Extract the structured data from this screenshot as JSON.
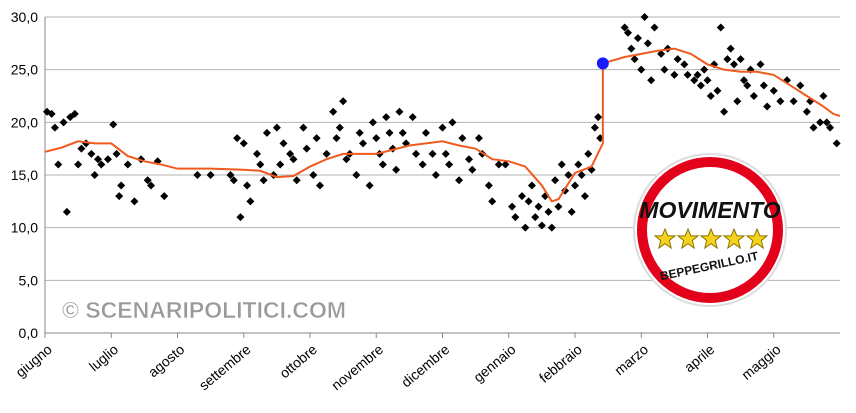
{
  "chart_data": {
    "type": "scatter",
    "xlim": [
      0,
      12
    ],
    "ylim": [
      0,
      30
    ],
    "grid": true,
    "yticks": [
      {
        "value": 0,
        "label": "0,0"
      },
      {
        "value": 5,
        "label": "5,0"
      },
      {
        "value": 10,
        "label": "10,0"
      },
      {
        "value": 15,
        "label": "15,0"
      },
      {
        "value": 20,
        "label": "20,0"
      },
      {
        "value": 25,
        "label": "25,0"
      },
      {
        "value": 30,
        "label": "30,0"
      }
    ],
    "xticks": [
      {
        "value": 0,
        "label": "giugno"
      },
      {
        "value": 1,
        "label": "luglio"
      },
      {
        "value": 2,
        "label": "agosto"
      },
      {
        "value": 3,
        "label": "settembre"
      },
      {
        "value": 4,
        "label": "ottobre"
      },
      {
        "value": 5,
        "label": "novembre"
      },
      {
        "value": 6,
        "label": "dicembre"
      },
      {
        "value": 7,
        "label": "gennaio"
      },
      {
        "value": 8,
        "label": "febbraio"
      },
      {
        "value": 9,
        "label": "marzo"
      },
      {
        "value": 10,
        "label": "aprile"
      },
      {
        "value": 11,
        "label": "maggio"
      }
    ],
    "watermark": "© SCENARIPOLITICI.COM",
    "logo": {
      "title": "MOVIMENTO",
      "site": "BEPPEGRILLO.IT"
    },
    "series": [
      {
        "type": "scatter",
        "color": "#000000",
        "x": [
          0.03,
          0.1,
          0.15,
          0.2,
          0.28,
          0.33,
          0.38,
          0.45,
          0.5,
          0.55,
          0.62,
          0.7,
          0.75,
          0.8,
          0.85,
          0.95,
          1.03,
          1.08,
          1.12,
          1.15,
          1.25,
          1.35,
          1.45,
          1.55,
          1.6,
          1.7,
          1.8,
          2.3,
          2.5,
          2.8,
          2.85,
          2.9,
          2.95,
          3.0,
          3.05,
          3.1,
          3.2,
          3.25,
          3.3,
          3.35,
          3.45,
          3.5,
          3.55,
          3.6,
          3.7,
          3.75,
          3.8,
          3.9,
          3.95,
          4.05,
          4.1,
          4.15,
          4.25,
          4.35,
          4.4,
          4.45,
          4.5,
          4.55,
          4.6,
          4.7,
          4.75,
          4.8,
          4.9,
          4.95,
          5.0,
          5.05,
          5.1,
          5.15,
          5.2,
          5.25,
          5.3,
          5.35,
          5.4,
          5.45,
          5.55,
          5.6,
          5.7,
          5.75,
          5.85,
          5.9,
          6.0,
          6.05,
          6.1,
          6.15,
          6.25,
          6.3,
          6.4,
          6.45,
          6.55,
          6.6,
          6.7,
          6.75,
          6.85,
          6.95,
          7.05,
          7.1,
          7.2,
          7.25,
          7.3,
          7.35,
          7.4,
          7.45,
          7.5,
          7.55,
          7.6,
          7.65,
          7.7,
          7.75,
          7.8,
          7.85,
          7.9,
          7.95,
          8.0,
          8.05,
          8.1,
          8.15,
          8.2,
          8.25,
          8.3,
          8.35,
          8.38,
          8.75,
          8.8,
          8.85,
          8.9,
          8.95,
          9.0,
          9.05,
          9.1,
          9.15,
          9.2,
          9.3,
          9.35,
          9.4,
          9.5,
          9.55,
          9.65,
          9.7,
          9.8,
          9.85,
          9.9,
          9.95,
          10.0,
          10.05,
          10.1,
          10.15,
          10.2,
          10.25,
          10.3,
          10.35,
          10.4,
          10.45,
          10.5,
          10.55,
          10.6,
          10.65,
          10.7,
          10.8,
          10.85,
          10.9,
          11.0,
          11.1,
          11.2,
          11.3,
          11.4,
          11.5,
          11.55,
          11.6,
          11.7,
          11.75,
          11.8,
          11.85,
          11.95
        ],
        "values": [
          21,
          20.8,
          19.5,
          16,
          20,
          11.5,
          20.5,
          20.8,
          16,
          17.5,
          18,
          17,
          15,
          16.5,
          16,
          16.5,
          19.8,
          17,
          13,
          14,
          16,
          12.5,
          16.5,
          14.5,
          14,
          16.3,
          13,
          15,
          15,
          15,
          14.5,
          18.5,
          11,
          18,
          14,
          12.5,
          17,
          16,
          14.5,
          19,
          15,
          19.5,
          16,
          18,
          17,
          16.5,
          14.5,
          19.5,
          17.5,
          15,
          18.5,
          14,
          17,
          21,
          18.5,
          19.5,
          22,
          16.5,
          17,
          15,
          19,
          18,
          14,
          20,
          18.5,
          17,
          16,
          20.5,
          19,
          17.5,
          15.5,
          21,
          19,
          18,
          20.5,
          17,
          16,
          19,
          17,
          15,
          19.5,
          17,
          16,
          20,
          14.5,
          18.5,
          16.5,
          15.5,
          18.5,
          17,
          14,
          12.5,
          16,
          16,
          12,
          11,
          13,
          10,
          12.5,
          14,
          11,
          12,
          10.2,
          13,
          11.5,
          10,
          14.5,
          12,
          16,
          13.5,
          15,
          11.5,
          14,
          16,
          15,
          13,
          17,
          15.5,
          19.5,
          20.5,
          18.5,
          29,
          28.5,
          27,
          26,
          28,
          25,
          30,
          27.5,
          24,
          29,
          26.5,
          25,
          27,
          24.5,
          26,
          25.5,
          24.5,
          24,
          24.5,
          23.5,
          25,
          24,
          22.5,
          25.5,
          23,
          29,
          21,
          26,
          27,
          25.5,
          22,
          26,
          24,
          23.5,
          25,
          22.5,
          25.5,
          23.5,
          21.5,
          23,
          22,
          24,
          22,
          23.5,
          21,
          22,
          19.5,
          20,
          22.5,
          20,
          19.5,
          18
        ]
      },
      {
        "type": "line",
        "color": "#f05a1e",
        "x": [
          0,
          0.25,
          0.5,
          0.75,
          1.0,
          1.25,
          1.5,
          1.75,
          2.0,
          2.5,
          3.0,
          3.25,
          3.5,
          3.75,
          4.0,
          4.25,
          4.5,
          4.75,
          5.0,
          5.25,
          5.5,
          5.75,
          6.0,
          6.25,
          6.5,
          6.75,
          7.0,
          7.25,
          7.5,
          7.65,
          7.75,
          8.0,
          8.25,
          8.42,
          8.42,
          8.75,
          9.0,
          9.25,
          9.5,
          9.75,
          10.0,
          10.25,
          10.5,
          10.75,
          11.0,
          11.25,
          11.5,
          11.75,
          11.9,
          12
        ],
        "values": [
          17.2,
          17.6,
          18.2,
          18.0,
          18.0,
          16.8,
          16.3,
          16.0,
          15.6,
          15.6,
          15.5,
          15.4,
          14.8,
          14.9,
          15.8,
          16.5,
          17.0,
          17.0,
          17.0,
          17.4,
          17.8,
          18.0,
          18.2,
          17.8,
          17.5,
          16.5,
          16.3,
          15.8,
          14.0,
          12.5,
          12.7,
          15.2,
          15.8,
          18.0,
          25.6,
          26.2,
          26.5,
          26.8,
          27.0,
          26.5,
          25.5,
          25.0,
          24.8,
          24.8,
          24.5,
          23.5,
          22.5,
          21.5,
          20.8,
          20.6
        ]
      },
      {
        "type": "point",
        "color": "#1a1aff",
        "x": [
          8.42
        ],
        "values": [
          25.6
        ]
      }
    ]
  }
}
